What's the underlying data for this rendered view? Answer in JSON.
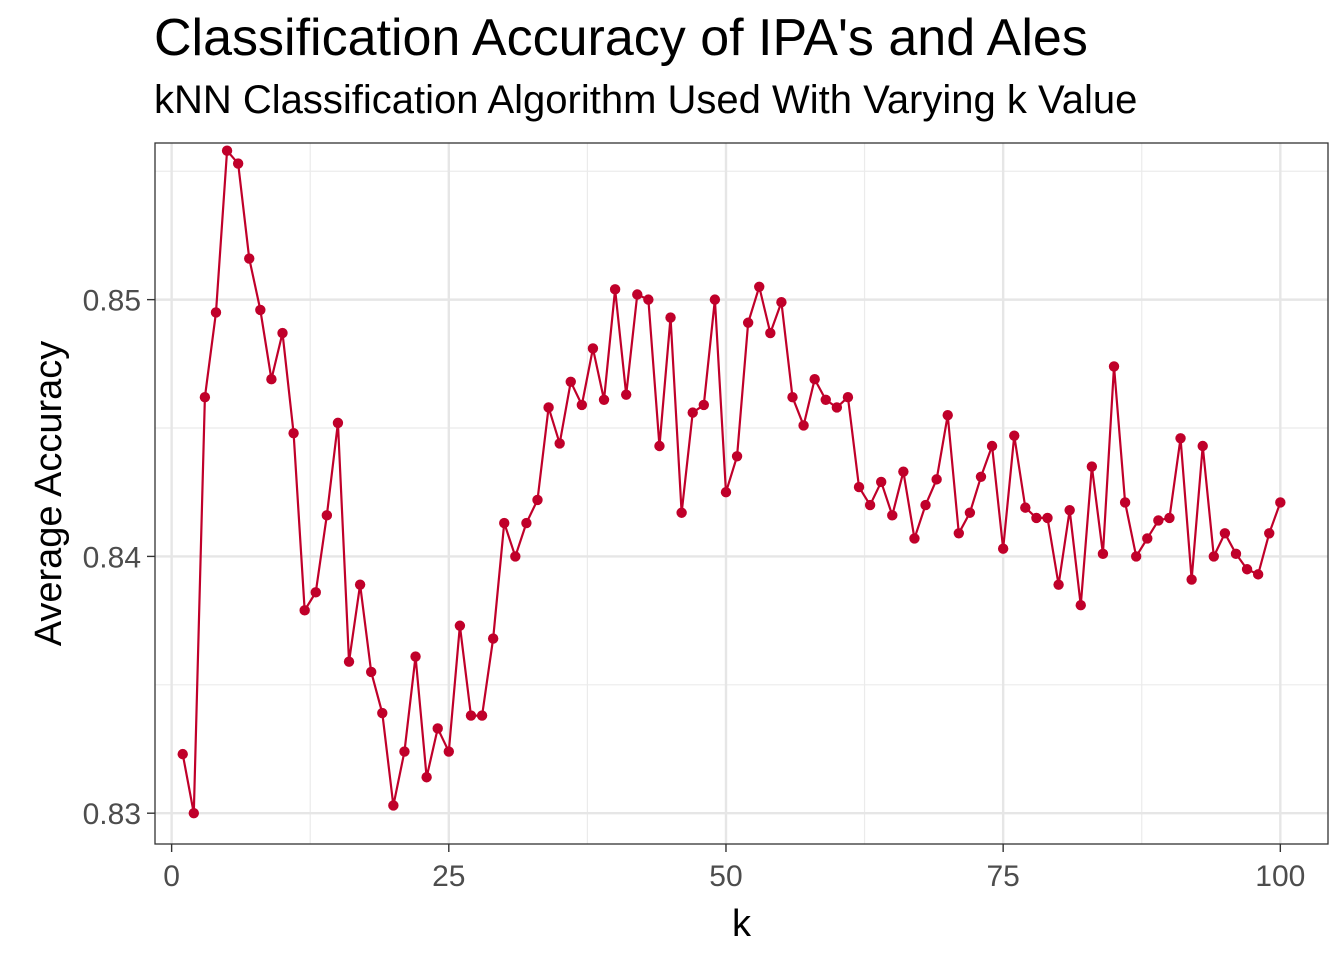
{
  "chart_data": {
    "type": "line",
    "title": "Classification Accuracy of IPA's and Ales",
    "subtitle": "kNN Classification Algorithm Used With Varying k Value",
    "xlabel": "k",
    "ylabel": "Average Accuracy",
    "xlim": [
      -1.5,
      104.3
    ],
    "ylim": [
      0.8288,
      0.8561
    ],
    "x_ticks": [
      0,
      25,
      50,
      75,
      100
    ],
    "x_tick_labels": [
      "0",
      "25",
      "50",
      "75",
      "100"
    ],
    "y_ticks": [
      0.83,
      0.84,
      0.85
    ],
    "y_tick_labels": [
      "0.83",
      "0.84",
      "0.85"
    ],
    "grid": true,
    "legend": "none",
    "series": [
      {
        "color": "#c0002a",
        "markers": true,
        "x": [
          1,
          2,
          3,
          4,
          5,
          6,
          7,
          8,
          9,
          10,
          11,
          12,
          13,
          14,
          15,
          16,
          17,
          18,
          19,
          20,
          21,
          22,
          23,
          24,
          25,
          26,
          27,
          28,
          29,
          30,
          31,
          32,
          33,
          34,
          35,
          36,
          37,
          38,
          39,
          40,
          41,
          42,
          43,
          44,
          45,
          46,
          47,
          48,
          49,
          50,
          51,
          52,
          53,
          54,
          55,
          56,
          57,
          58,
          59,
          60,
          61,
          62,
          63,
          64,
          65,
          66,
          67,
          68,
          69,
          70,
          71,
          72,
          73,
          74,
          75,
          76,
          77,
          78,
          79,
          80,
          81,
          82,
          83,
          84,
          85,
          86,
          87,
          88,
          89,
          90,
          91,
          92,
          93,
          94,
          95,
          96,
          97,
          98,
          99,
          100
        ],
        "values": [
          0.8323,
          0.83,
          0.8462,
          0.8495,
          0.8558,
          0.8553,
          0.8516,
          0.8496,
          0.8469,
          0.8487,
          0.8448,
          0.8379,
          0.8386,
          0.8416,
          0.8452,
          0.8359,
          0.8389,
          0.8355,
          0.8339,
          0.8303,
          0.8324,
          0.8361,
          0.8314,
          0.8333,
          0.8324,
          0.8373,
          0.8338,
          0.8338,
          0.8368,
          0.8413,
          0.84,
          0.8413,
          0.8422,
          0.8458,
          0.8444,
          0.8468,
          0.8459,
          0.8481,
          0.8461,
          0.8504,
          0.8463,
          0.8502,
          0.85,
          0.8443,
          0.8493,
          0.8417,
          0.8456,
          0.8459,
          0.85,
          0.8425,
          0.8439,
          0.8491,
          0.8505,
          0.8487,
          0.8499,
          0.8462,
          0.8451,
          0.8469,
          0.8461,
          0.8458,
          0.8462,
          0.8427,
          0.842,
          0.8429,
          0.8416,
          0.8433,
          0.8407,
          0.842,
          0.843,
          0.8455,
          0.8409,
          0.8417,
          0.8431,
          0.8443,
          0.8403,
          0.8447,
          0.8419,
          0.8415,
          0.8415,
          0.8389,
          0.8418,
          0.8381,
          0.8435,
          0.8401,
          0.8474,
          0.8421,
          0.84,
          0.8407,
          0.8414,
          0.8415,
          0.8446,
          0.8391,
          0.8443,
          0.84,
          0.8409,
          0.8401,
          0.8395,
          0.8393,
          0.8409,
          0.8421
        ]
      }
    ]
  }
}
